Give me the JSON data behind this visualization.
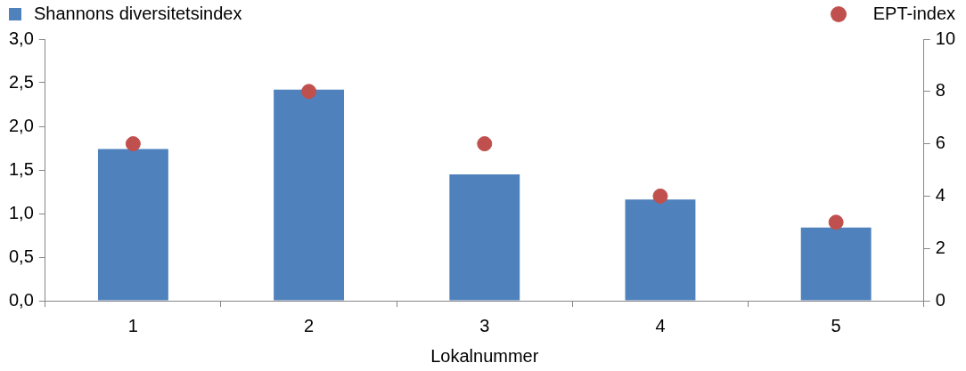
{
  "chart_data": {
    "type": "bar",
    "xlabel": "Lokalnummer",
    "categories": [
      "1",
      "2",
      "3",
      "4",
      "5"
    ],
    "series": [
      {
        "name": "Shannons diversitetsindex",
        "color": "#4f81bd",
        "values": [
          1.74,
          2.42,
          1.45,
          1.16,
          0.84
        ]
      },
      {
        "name": "EPT-index",
        "type": "scatter",
        "axis": "y2",
        "color": "#c0504d",
        "values": [
          6,
          8,
          6,
          4,
          3
        ]
      }
    ],
    "ylim": [
      0,
      3
    ],
    "yticks": [
      {
        "value": 0,
        "label": "0,0"
      },
      {
        "value": 0.5,
        "label": "0,5"
      },
      {
        "value": 1,
        "label": "1,0"
      },
      {
        "value": 1.5,
        "label": "1,5"
      },
      {
        "value": 2,
        "label": "2,0"
      },
      {
        "value": 2.5,
        "label": "2,5"
      },
      {
        "value": 3,
        "label": "3,0"
      }
    ],
    "y2lim": [
      0,
      10
    ],
    "y2ticks": [
      0,
      2,
      4,
      6,
      8,
      10
    ],
    "grid": false,
    "legend": "top",
    "marker": "circle"
  }
}
